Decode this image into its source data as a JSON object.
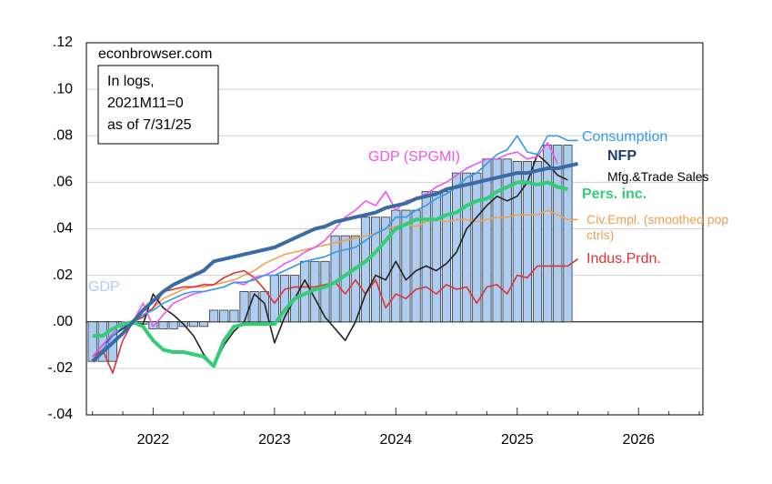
{
  "chart_data": {
    "type": "combo",
    "source": "econbrowser.com",
    "annotation": [
      "In logs,",
      "2021M11=0",
      "as of 7/31/25"
    ],
    "x": [
      2021.5,
      2021.5833,
      2021.6667,
      2021.75,
      2021.8333,
      2021.9167,
      2022,
      2022.0833,
      2022.1667,
      2022.25,
      2022.3333,
      2022.4167,
      2022.5,
      2022.5833,
      2022.6667,
      2022.75,
      2022.8333,
      2022.9167,
      2023,
      2023.0833,
      2023.1667,
      2023.25,
      2023.3333,
      2023.4167,
      2023.5,
      2023.5833,
      2023.6667,
      2023.75,
      2023.8333,
      2023.9167,
      2024,
      2024.0833,
      2024.1667,
      2024.25,
      2024.3333,
      2024.4167,
      2024.5,
      2024.5833,
      2024.6667,
      2024.75,
      2024.8333,
      2024.9167,
      2025,
      2025.0833,
      2025.1667,
      2025.25,
      2025.3333,
      2025.4167,
      2025.5
    ],
    "xlim": [
      2021.45,
      2026.53
    ],
    "xticks": [
      2022,
      2023,
      2024,
      2025,
      2026
    ],
    "ylim": [
      -0.04,
      0.12
    ],
    "yticks": [
      {
        "value": -0.04,
        "label": "-.04"
      },
      {
        "value": -0.02,
        "label": "-.02"
      },
      {
        "value": 0,
        "label": ".00"
      },
      {
        "value": 0.02,
        "label": ".02"
      },
      {
        "value": 0.04,
        "label": ".04"
      },
      {
        "value": 0.06,
        "label": ".06"
      },
      {
        "value": 0.08,
        "label": ".08"
      },
      {
        "value": 0.1,
        "label": ".10"
      },
      {
        "value": 0.12,
        "label": ".12"
      }
    ],
    "grid": true,
    "series": [
      {
        "name": "GDP",
        "type": "bar",
        "color": "#aecdf2",
        "values": [
          -0.017,
          -0.017,
          -0.017,
          -0.001,
          -0.001,
          -0.001,
          -0.003,
          -0.003,
          -0.003,
          -0.002,
          -0.002,
          -0.002,
          0.005,
          0.005,
          0.005,
          0.013,
          0.013,
          0.013,
          0.02,
          0.02,
          0.02,
          0.026,
          0.026,
          0.026,
          0.037,
          0.037,
          0.037,
          0.045,
          0.045,
          0.045,
          0.048,
          0.048,
          0.048,
          0.056,
          0.056,
          0.056,
          0.064,
          0.064,
          0.064,
          0.07,
          0.07,
          0.07,
          0.069,
          0.069,
          0.069,
          0.076,
          0.076,
          0.076,
          null
        ]
      },
      {
        "name": "Civ.Empl. (smoothed pop ctrls)",
        "type": "line",
        "color": "#f0a050",
        "values": [
          -0.017,
          -0.012,
          -0.006,
          -0.002,
          0,
          0.003,
          0.006,
          0.01,
          0.012,
          0.014,
          0.015,
          0.015,
          0.016,
          0.017,
          0.018,
          0.02,
          0.022,
          0.025,
          0.027,
          0.029,
          0.03,
          0.031,
          0.032,
          0.033,
          0.034,
          0.035,
          0.036,
          0.037,
          0.038,
          0.04,
          0.041,
          0.042,
          0.041,
          0.043,
          0.044,
          0.043,
          0.044,
          0.044,
          0.043,
          0.044,
          0.045,
          0.045,
          0.046,
          0.046,
          0.046,
          0.048,
          0.046,
          0.044,
          0.044
        ]
      },
      {
        "name": "Indus.Prdn.",
        "type": "line",
        "color": "#dd3333",
        "values": [
          -0.015,
          -0.012,
          -0.022,
          -0.008,
          0,
          0.002,
          0.006,
          0.013,
          0.014,
          0.015,
          0.015,
          0.016,
          0.016,
          0.019,
          0.021,
          0.022,
          0.019,
          0.014,
          0.008,
          0.014,
          0.015,
          0.015,
          0.015,
          0.016,
          0.017,
          0.012,
          0.018,
          0.012,
          0.018,
          0.006,
          0.012,
          0.01,
          0.014,
          0.015,
          0.012,
          0.016,
          0.014,
          0.015,
          0.008,
          0.015,
          0.016,
          0.012,
          0.02,
          0.019,
          0.024,
          0.024,
          0.024,
          0.024,
          0.027
        ]
      },
      {
        "name": "Mfg.&Trade Sales",
        "type": "line",
        "color": "#222222",
        "values": [
          -0.015,
          -0.01,
          -0.006,
          -0.003,
          0,
          -0.001,
          0.012,
          0.006,
          0.003,
          -0.001,
          -0.006,
          -0.014,
          -0.019,
          -0.01,
          -0.004,
          0,
          0.012,
          0.008,
          -0.009,
          0.002,
          0.01,
          0.018,
          0.01,
          0.002,
          -0.003,
          -0.008,
          0,
          0.012,
          0.02,
          0.018,
          0.026,
          0.018,
          0.022,
          0.024,
          0.022,
          0.025,
          0.03,
          0.04,
          0.045,
          0.05,
          0.054,
          0.052,
          0.054,
          0.06,
          0.072,
          0.068,
          0.063,
          0.061,
          null
        ]
      },
      {
        "name": "GDP (SPGMI)",
        "type": "line",
        "color": "#ee55ee",
        "values": [
          -0.015,
          -0.01,
          -0.005,
          0,
          0,
          0.008,
          -0.002,
          0.003,
          0.008,
          0.01,
          0.012,
          0.013,
          0.014,
          0.015,
          0.017,
          0.016,
          0.019,
          0.02,
          0.022,
          0.025,
          0.027,
          0.03,
          0.032,
          0.035,
          0.04,
          0.045,
          0.048,
          0.052,
          0.05,
          0.056,
          0.048,
          0.052,
          0.053,
          0.055,
          0.058,
          0.06,
          0.063,
          0.066,
          0.068,
          0.07,
          0.07,
          0.072,
          0.073,
          0.07,
          0.071,
          0.077,
          0.068,
          null,
          null
        ]
      },
      {
        "name": "Consumption",
        "type": "line",
        "color": "#3399ee",
        "values": [
          -0.017,
          -0.012,
          -0.006,
          -0.002,
          0,
          0.003,
          0.005,
          0.008,
          0.01,
          0.012,
          0.013,
          0.013,
          0.014,
          0.015,
          0.017,
          0.017,
          0.018,
          0.02,
          0.02,
          0.022,
          0.024,
          0.026,
          0.027,
          0.028,
          0.03,
          0.031,
          0.032,
          0.035,
          0.038,
          0.04,
          0.045,
          0.045,
          0.048,
          0.05,
          0.053,
          0.055,
          0.058,
          0.062,
          0.064,
          0.068,
          0.072,
          0.074,
          0.08,
          0.073,
          0.072,
          0.08,
          0.08,
          0.078,
          0.078
        ]
      },
      {
        "name": "Pers. inc.",
        "type": "line",
        "color": "#33cc77",
        "values": [
          -0.006,
          -0.006,
          -0.003,
          -0.001,
          0,
          -0.002,
          -0.008,
          -0.012,
          -0.013,
          -0.013,
          -0.014,
          -0.015,
          -0.019,
          -0.008,
          -0.002,
          -0.001,
          -0.001,
          -0.001,
          -0.001,
          0.005,
          0.01,
          0.012,
          0.014,
          0.015,
          0.017,
          0.02,
          0.023,
          0.026,
          0.03,
          0.035,
          0.04,
          0.042,
          0.044,
          0.044,
          0.044,
          0.046,
          0.047,
          0.05,
          0.052,
          0.053,
          0.056,
          0.058,
          0.06,
          0.06,
          0.059,
          0.06,
          0.058,
          0.057,
          null
        ]
      },
      {
        "name": "NFP",
        "type": "line",
        "color": "#3a6ba5",
        "values": [
          -0.017,
          -0.013,
          -0.009,
          -0.005,
          0,
          0.005,
          0.009,
          0.013,
          0.016,
          0.018,
          0.02,
          0.022,
          0.026,
          0.027,
          0.028,
          0.029,
          0.03,
          0.031,
          0.032,
          0.034,
          0.036,
          0.038,
          0.04,
          0.041,
          0.043,
          0.044,
          0.045,
          0.046,
          0.047,
          0.049,
          0.05,
          0.051,
          0.053,
          0.054,
          0.055,
          0.057,
          0.058,
          0.059,
          0.06,
          0.061,
          0.062,
          0.063,
          0.064,
          0.064,
          0.065,
          0.066,
          0.066,
          0.067,
          0.068
        ]
      }
    ]
  }
}
